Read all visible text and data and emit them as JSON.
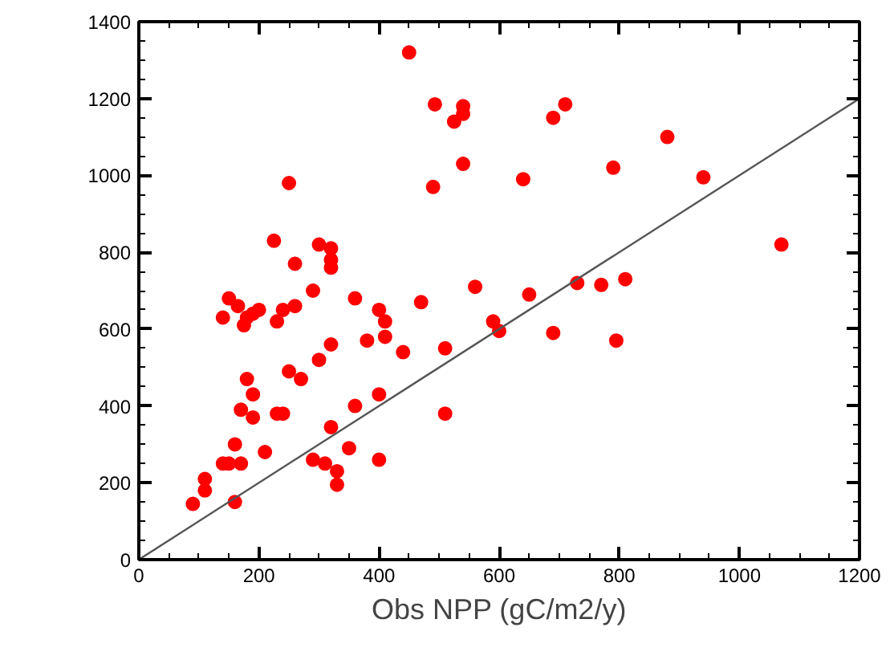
{
  "chart_data": {
    "type": "scatter",
    "xlabel": "Obs NPP (gC/m2/y)",
    "x": [
      450,
      493,
      540,
      540,
      525,
      710,
      690,
      880,
      540,
      640,
      790,
      940,
      250,
      490,
      225,
      300,
      320,
      320,
      320,
      260,
      290,
      240,
      230,
      180,
      175,
      150,
      165,
      190,
      200,
      140,
      260,
      360,
      400,
      410,
      470,
      560,
      440,
      410,
      510,
      590,
      600,
      650,
      730,
      770,
      810,
      690,
      795,
      1070,
      320,
      300,
      380,
      250,
      270,
      180,
      190,
      170,
      190,
      400,
      360,
      510,
      230,
      240,
      320,
      210,
      160,
      150,
      140,
      170,
      290,
      310,
      400,
      350,
      330,
      330,
      110,
      110,
      90,
      160
    ],
    "series": [
      {
        "color": "#ff0000",
        "marker": "circle",
        "values": [
          1320,
          1185,
          1180,
          1160,
          1140,
          1185,
          1150,
          1100,
          1030,
          990,
          1020,
          995,
          980,
          970,
          830,
          820,
          810,
          780,
          760,
          770,
          700,
          650,
          620,
          630,
          610,
          680,
          660,
          640,
          650,
          630,
          660,
          680,
          650,
          620,
          670,
          710,
          540,
          580,
          550,
          620,
          595,
          690,
          720,
          715,
          730,
          590,
          570,
          820,
          560,
          520,
          570,
          490,
          470,
          470,
          430,
          390,
          370,
          430,
          400,
          380,
          380,
          380,
          345,
          280,
          300,
          250,
          250,
          250,
          260,
          250,
          260,
          290,
          230,
          195,
          210,
          180,
          145,
          150
        ]
      },
      {
        "type": "line",
        "color": "#555555",
        "line_style": "solid",
        "x": [
          0,
          1200
        ],
        "values": [
          0,
          1200
        ]
      }
    ],
    "xlim": [
      0,
      1200
    ],
    "ylim": [
      0,
      1400
    ],
    "xticks": [
      0,
      200,
      400,
      600,
      800,
      1000,
      1200
    ],
    "yticks": [
      0,
      200,
      400,
      600,
      800,
      1000,
      1200,
      1400
    ],
    "grid": false
  }
}
